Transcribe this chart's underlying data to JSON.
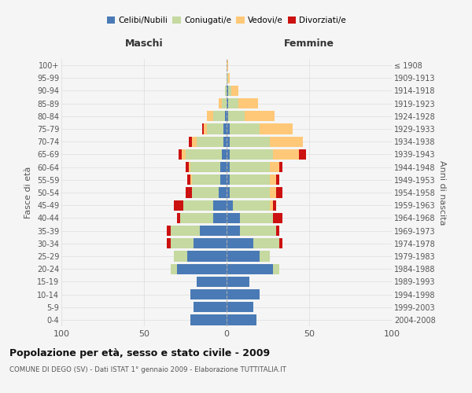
{
  "age_groups": [
    "0-4",
    "5-9",
    "10-14",
    "15-19",
    "20-24",
    "25-29",
    "30-34",
    "35-39",
    "40-44",
    "45-49",
    "50-54",
    "55-59",
    "60-64",
    "65-69",
    "70-74",
    "75-79",
    "80-84",
    "85-89",
    "90-94",
    "95-99",
    "100+"
  ],
  "birth_years": [
    "2004-2008",
    "1999-2003",
    "1994-1998",
    "1989-1993",
    "1984-1988",
    "1979-1983",
    "1974-1978",
    "1969-1973",
    "1964-1968",
    "1959-1963",
    "1954-1958",
    "1949-1953",
    "1944-1948",
    "1939-1943",
    "1934-1938",
    "1929-1933",
    "1924-1928",
    "1919-1923",
    "1914-1918",
    "1909-1913",
    "≤ 1908"
  ],
  "colors": {
    "celibi": "#4a7ab5",
    "coniugati": "#c5d9a0",
    "vedovi": "#ffc878",
    "divorziati": "#cc1111"
  },
  "maschi": {
    "celibi": [
      22,
      20,
      22,
      18,
      30,
      24,
      20,
      16,
      8,
      8,
      5,
      4,
      4,
      3,
      2,
      2,
      1,
      0,
      0,
      0,
      0
    ],
    "coniugati": [
      0,
      0,
      0,
      0,
      4,
      8,
      14,
      18,
      20,
      18,
      16,
      17,
      18,
      22,
      16,
      10,
      7,
      3,
      1,
      0,
      0
    ],
    "vedovi": [
      0,
      0,
      0,
      0,
      0,
      0,
      0,
      0,
      0,
      0,
      0,
      1,
      1,
      2,
      3,
      2,
      4,
      2,
      0,
      0,
      0
    ],
    "divorziati": [
      0,
      0,
      0,
      0,
      0,
      0,
      2,
      2,
      2,
      6,
      4,
      2,
      2,
      2,
      2,
      1,
      0,
      0,
      0,
      0,
      0
    ]
  },
  "femmine": {
    "celibi": [
      18,
      16,
      20,
      14,
      28,
      20,
      16,
      8,
      8,
      4,
      2,
      2,
      2,
      2,
      2,
      2,
      1,
      1,
      1,
      0,
      0
    ],
    "coniugati": [
      0,
      0,
      0,
      0,
      4,
      6,
      16,
      22,
      20,
      22,
      24,
      24,
      24,
      26,
      24,
      18,
      10,
      6,
      2,
      1,
      0
    ],
    "vedovi": [
      0,
      0,
      0,
      0,
      0,
      0,
      0,
      0,
      0,
      2,
      4,
      4,
      6,
      16,
      20,
      20,
      18,
      12,
      4,
      1,
      1
    ],
    "divorziati": [
      0,
      0,
      0,
      0,
      0,
      0,
      2,
      2,
      6,
      2,
      4,
      2,
      2,
      4,
      0,
      0,
      0,
      0,
      0,
      0,
      0
    ]
  },
  "title": "Popolazione per età, sesso e stato civile - 2009",
  "subtitle": "COMUNE DI DEGO (SV) - Dati ISTAT 1° gennaio 2009 - Elaborazione TUTTITALIA.IT",
  "xlabel_left": "Maschi",
  "xlabel_right": "Femmine",
  "ylabel_left": "Fasce di età",
  "ylabel_right": "Anni di nascita",
  "xlim": 100,
  "legend_labels": [
    "Celibi/Nubili",
    "Coniugati/e",
    "Vedovi/e",
    "Divorziati/e"
  ],
  "background_color": "#f5f5f5",
  "grid_color": "#dddddd"
}
